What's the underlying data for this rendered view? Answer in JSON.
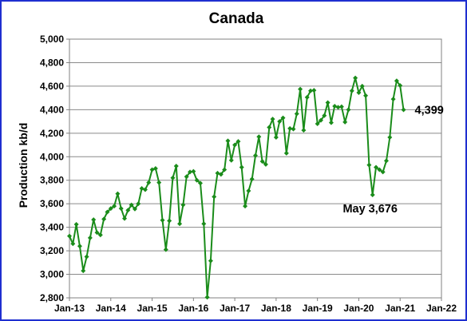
{
  "chart_data": {
    "type": "line",
    "title": "Canada",
    "ylabel": "Production kb/d",
    "xlabel": "",
    "ylim": [
      2800,
      5000
    ],
    "yticks": [
      2800,
      3000,
      3200,
      3400,
      3600,
      3800,
      4000,
      4200,
      4400,
      4600,
      4800,
      5000
    ],
    "ytick_labels": [
      "2,800",
      "3,000",
      "3,200",
      "3,400",
      "3,600",
      "3,800",
      "4,000",
      "4,200",
      "4,400",
      "4,600",
      "4,800",
      "5,000"
    ],
    "xlim": [
      "2013-01",
      "2022-01"
    ],
    "xticks": [
      "2013-01",
      "2014-01",
      "2015-01",
      "2016-01",
      "2017-01",
      "2018-01",
      "2019-01",
      "2020-01",
      "2021-01",
      "2022-01"
    ],
    "xtick_labels": [
      "Jan-13",
      "Jan-14",
      "Jan-15",
      "Jan-16",
      "Jan-17",
      "Jan-18",
      "Jan-19",
      "Jan-20",
      "Jan-21",
      "Jan-22"
    ],
    "grid": {
      "horizontal": true,
      "vertical": false
    },
    "legend": "none",
    "series": [
      {
        "color": "#1a8c1a",
        "marker": "diamond",
        "start": "2013-01",
        "frequency": "monthly",
        "values": [
          3325,
          3260,
          3425,
          3240,
          3030,
          3150,
          3310,
          3465,
          3355,
          3335,
          3470,
          3530,
          3560,
          3580,
          3685,
          3560,
          3475,
          3545,
          3590,
          3555,
          3600,
          3730,
          3720,
          3780,
          3890,
          3900,
          3780,
          3460,
          3210,
          3455,
          3820,
          3920,
          3430,
          3590,
          3830,
          3870,
          3875,
          3800,
          3775,
          3430,
          2805,
          3115,
          3660,
          3860,
          3850,
          3890,
          4135,
          3970,
          4100,
          4130,
          3910,
          3580,
          3710,
          3810,
          4010,
          4170,
          3960,
          3935,
          4250,
          4320,
          4165,
          4300,
          4330,
          4030,
          4240,
          4235,
          4365,
          4575,
          4225,
          4505,
          4560,
          4565,
          4280,
          4310,
          4350,
          4460,
          4290,
          4430,
          4420,
          4425,
          4295,
          4400,
          4560,
          4670,
          4545,
          4600,
          4520,
          3930,
          3676,
          3910,
          3890,
          3870,
          3965,
          4165,
          4490,
          4645,
          4605,
          4399
        ]
      }
    ],
    "annotations": [
      {
        "text": "4,399",
        "x": "2021-02",
        "y": 4399
      },
      {
        "text": "May 3,676",
        "x": "2020-05",
        "y": 3676
      }
    ]
  }
}
